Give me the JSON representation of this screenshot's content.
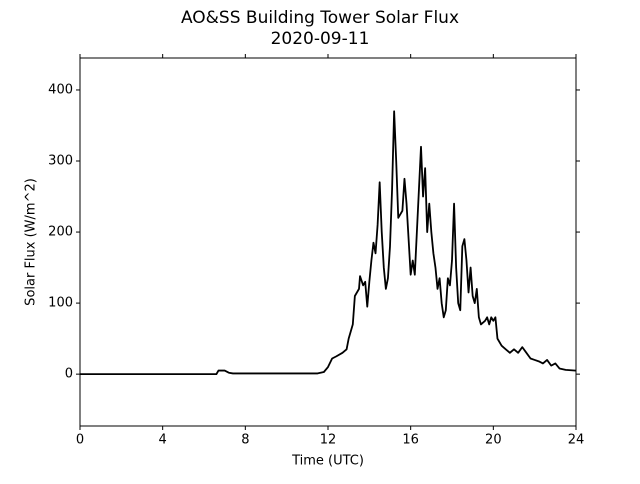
{
  "chart_data": {
    "type": "line",
    "title": "AO&SS Building Tower Solar Flux",
    "subtitle": "2020-09-11",
    "x_label": "Time (UTC)",
    "y_label": "Solar Flux (W/m^2)",
    "x": [
      0,
      6.6,
      6.7,
      7.0,
      7.2,
      7.4,
      11.5,
      11.8,
      12.0,
      12.2,
      12.4,
      12.7,
      12.9,
      13.0,
      13.2,
      13.3,
      13.5,
      13.55,
      13.7,
      13.8,
      13.9,
      14.0,
      14.1,
      14.2,
      14.3,
      14.4,
      14.5,
      14.6,
      14.7,
      14.8,
      14.9,
      15.0,
      15.1,
      15.2,
      15.3,
      15.4,
      15.6,
      15.7,
      15.8,
      15.9,
      16.0,
      16.1,
      16.2,
      16.3,
      16.4,
      16.5,
      16.6,
      16.7,
      16.8,
      16.9,
      17.0,
      17.1,
      17.2,
      17.3,
      17.4,
      17.5,
      17.6,
      17.7,
      17.8,
      17.9,
      18.0,
      18.1,
      18.2,
      18.3,
      18.4,
      18.5,
      18.6,
      18.7,
      18.8,
      18.9,
      19.0,
      19.1,
      19.2,
      19.3,
      19.4,
      19.6,
      19.7,
      19.8,
      19.9,
      20.0,
      20.1,
      20.2,
      20.4,
      20.6,
      20.8,
      21.0,
      21.2,
      21.4,
      21.6,
      21.8,
      22.0,
      22.2,
      22.4,
      22.6,
      22.8,
      23.0,
      23.2,
      23.5,
      24
    ],
    "series": [
      {
        "name": "Solar Flux",
        "color": "#000000",
        "values": [
          0,
          0,
          5,
          5,
          2,
          1,
          1,
          3,
          10,
          22,
          25,
          30,
          35,
          50,
          70,
          110,
          120,
          138,
          125,
          130,
          95,
          130,
          160,
          185,
          170,
          210,
          270,
          200,
          150,
          120,
          135,
          180,
          260,
          370,
          300,
          220,
          230,
          275,
          240,
          190,
          140,
          160,
          140,
          200,
          260,
          320,
          250,
          290,
          200,
          240,
          200,
          170,
          150,
          120,
          135,
          100,
          80,
          90,
          135,
          125,
          160,
          240,
          150,
          100,
          90,
          180,
          190,
          160,
          115,
          150,
          110,
          100,
          120,
          80,
          70,
          75,
          80,
          70,
          80,
          75,
          80,
          50,
          40,
          35,
          30,
          35,
          30,
          38,
          30,
          22,
          20,
          18,
          15,
          20,
          12,
          15,
          8,
          6,
          5
        ]
      }
    ],
    "xlim": [
      0,
      24
    ],
    "xticks": [
      0,
      4,
      8,
      12,
      16,
      20,
      24
    ],
    "ylim": [
      -73,
      445
    ],
    "yticks": [
      0,
      100,
      200,
      300,
      400
    ]
  }
}
